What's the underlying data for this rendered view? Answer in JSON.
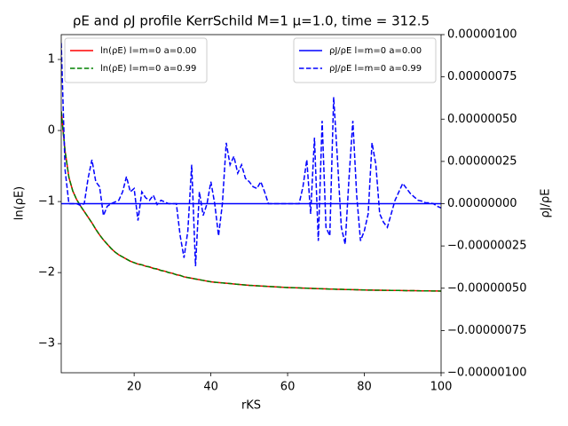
{
  "chart_data": {
    "type": "line",
    "title": "ρE and ρJ profile KerrSchild M=1 μ=1.0, time = 312.5",
    "xlabel": "rKS",
    "ylabel": "ln(ρE)",
    "y2label": "ρJ/ρE",
    "xlim": [
      1,
      100
    ],
    "xticks": [
      20,
      40,
      60,
      80,
      100
    ],
    "ylim": [
      -3.41,
      1.35
    ],
    "yticks": [
      {
        "value": -3,
        "label": "−3"
      },
      {
        "value": -2,
        "label": "−2"
      },
      {
        "value": -1,
        "label": "−1"
      },
      0,
      1
    ],
    "y2lim": [
      -1e-06,
      1e-06
    ],
    "y2ticks": [
      {
        "value": -1e-06,
        "label": "−0.00000100"
      },
      {
        "value": -7.5e-07,
        "label": "−0.00000075"
      },
      {
        "value": -5e-07,
        "label": "−0.00000050"
      },
      {
        "value": -2.5e-07,
        "label": "−0.00000025"
      },
      {
        "value": 0,
        "label": "0.00000000"
      },
      {
        "value": 2.5e-07,
        "label": "0.00000025"
      },
      {
        "value": 5e-07,
        "label": "0.00000050"
      },
      {
        "value": 7.5e-07,
        "label": "0.00000075"
      },
      {
        "value": 1e-06,
        "label": "0.00000100"
      }
    ],
    "legend": {
      "y": "upper left",
      "y2": "upper right"
    },
    "x": [
      1,
      2,
      3,
      4,
      5,
      6,
      7,
      8,
      9,
      10,
      11,
      12,
      13,
      14,
      15,
      16,
      17,
      18,
      19,
      20,
      21,
      22,
      23,
      24,
      25,
      26,
      27,
      28,
      29,
      30,
      31,
      32,
      33,
      34,
      35,
      36,
      37,
      38,
      39,
      40,
      41,
      42,
      43,
      44,
      45,
      46,
      47,
      48,
      49,
      50,
      51,
      52,
      53,
      54,
      55,
      56,
      57,
      58,
      59,
      60,
      61,
      62,
      63,
      64,
      65,
      66,
      67,
      68,
      69,
      70,
      71,
      72,
      73,
      74,
      75,
      76,
      77,
      78,
      79,
      80,
      81,
      82,
      83,
      84,
      85,
      86,
      87,
      88,
      89,
      90,
      91,
      92,
      93,
      94,
      95,
      96,
      97,
      98,
      99,
      100
    ],
    "series": [
      {
        "name": "ln(ρE) l=m=0 a=0.00",
        "color": "#ff0000",
        "dash": false,
        "axis": "y",
        "values": [
          0.27,
          -0.29,
          -0.66,
          -0.85,
          -0.97,
          -1.06,
          -1.14,
          -1.22,
          -1.3,
          -1.39,
          -1.47,
          -1.54,
          -1.6,
          -1.66,
          -1.71,
          -1.75,
          -1.78,
          -1.81,
          -1.84,
          -1.86,
          -1.88,
          -1.89,
          -1.91,
          -1.92,
          -1.94,
          -1.95,
          -1.97,
          -1.98,
          -2.0,
          -2.01,
          -2.03,
          -2.04,
          -2.06,
          -2.07,
          -2.08,
          -2.09,
          -2.1,
          -2.11,
          -2.12,
          -2.13,
          -2.135,
          -2.14,
          -2.145,
          -2.15,
          -2.155,
          -2.16,
          -2.165,
          -2.17,
          -2.175,
          -2.18,
          -2.183,
          -2.186,
          -2.189,
          -2.192,
          -2.195,
          -2.198,
          -2.201,
          -2.204,
          -2.207,
          -2.21,
          -2.212,
          -2.214,
          -2.216,
          -2.218,
          -2.22,
          -2.222,
          -2.224,
          -2.226,
          -2.228,
          -2.23,
          -2.232,
          -2.233,
          -2.235,
          -2.236,
          -2.238,
          -2.239,
          -2.24,
          -2.242,
          -2.243,
          -2.245,
          -2.246,
          -2.247,
          -2.248,
          -2.248,
          -2.249,
          -2.25,
          -2.251,
          -2.252,
          -2.252,
          -2.253,
          -2.254,
          -2.255,
          -2.255,
          -2.256,
          -2.257,
          -2.258,
          -2.258,
          -2.259,
          -2.259,
          -2.26
        ]
      },
      {
        "name": "ln(ρE) l=m=0 a=0.99",
        "color": "#008000",
        "dash": true,
        "axis": "y",
        "values": [
          0.27,
          -0.29,
          -0.66,
          -0.85,
          -0.97,
          -1.06,
          -1.14,
          -1.22,
          -1.3,
          -1.39,
          -1.47,
          -1.54,
          -1.6,
          -1.66,
          -1.71,
          -1.75,
          -1.78,
          -1.81,
          -1.84,
          -1.86,
          -1.88,
          -1.89,
          -1.91,
          -1.92,
          -1.94,
          -1.95,
          -1.97,
          -1.98,
          -2.0,
          -2.01,
          -2.03,
          -2.04,
          -2.06,
          -2.07,
          -2.08,
          -2.09,
          -2.1,
          -2.11,
          -2.12,
          -2.13,
          -2.135,
          -2.14,
          -2.145,
          -2.15,
          -2.155,
          -2.16,
          -2.165,
          -2.17,
          -2.175,
          -2.18,
          -2.183,
          -2.186,
          -2.189,
          -2.192,
          -2.195,
          -2.198,
          -2.201,
          -2.204,
          -2.207,
          -2.21,
          -2.212,
          -2.214,
          -2.216,
          -2.218,
          -2.22,
          -2.222,
          -2.224,
          -2.226,
          -2.228,
          -2.23,
          -2.232,
          -2.233,
          -2.235,
          -2.236,
          -2.238,
          -2.239,
          -2.24,
          -2.242,
          -2.243,
          -2.245,
          -2.246,
          -2.247,
          -2.248,
          -2.248,
          -2.249,
          -2.25,
          -2.251,
          -2.252,
          -2.252,
          -2.253,
          -2.254,
          -2.255,
          -2.255,
          -2.256,
          -2.257,
          -2.258,
          -2.258,
          -2.259,
          -2.259,
          -2.26
        ]
      },
      {
        "name": "ρJ/ρE l=m=0 a=0.00",
        "color": "#0000ff",
        "dash": false,
        "axis": "y2",
        "values": [
          0,
          0,
          0,
          0,
          0,
          0,
          0,
          0,
          0,
          0,
          0,
          0,
          0,
          0,
          0,
          0,
          0,
          0,
          0,
          0,
          0,
          0,
          0,
          0,
          0,
          0,
          0,
          0,
          0,
          0,
          0,
          0,
          0,
          0,
          0,
          0,
          0,
          0,
          0,
          0,
          0,
          0,
          0,
          0,
          0,
          0,
          0,
          0,
          0,
          0,
          0,
          0,
          0,
          0,
          0,
          0,
          0,
          0,
          0,
          0,
          0,
          0,
          0,
          0,
          0,
          0,
          0,
          0,
          0,
          0,
          0,
          0,
          0,
          0,
          0,
          0,
          0,
          0,
          0,
          0,
          0,
          0,
          0,
          0,
          0,
          0,
          0,
          0,
          0,
          0,
          0,
          0,
          0,
          0,
          0,
          0,
          0,
          0,
          0,
          0
        ]
      },
      {
        "name": "ρJ/ρE l=m=0 a=0.99",
        "color": "#0000ff",
        "dash": true,
        "axis": "y2",
        "values": [
          9.5e-07,
          2e-07,
          0,
          0,
          0,
          -1e-08,
          0,
          1.5e-07,
          2.6e-07,
          1.3e-07,
          1e-07,
          -7e-08,
          -1.5e-08,
          0,
          1e-08,
          2e-08,
          7e-08,
          1.6e-07,
          7e-08,
          9e-08,
          -1e-07,
          7e-08,
          3.5e-08,
          2e-08,
          5e-08,
          -5e-09,
          2e-08,
          1e-08,
          0,
          0,
          0,
          -1.9e-07,
          -3.2e-07,
          -1.6e-07,
          2.3e-07,
          -3.7e-07,
          7e-08,
          -7e-08,
          0,
          1.3e-07,
          0,
          -1.9e-07,
          0,
          3.6e-07,
          2.3e-07,
          2.8e-07,
          1.8e-07,
          2.3e-07,
          1.5e-07,
          1.3e-07,
          1e-07,
          9e-08,
          1.3e-07,
          7e-08,
          0,
          0,
          0,
          0,
          0,
          0,
          0,
          0,
          0,
          1e-07,
          2.6e-07,
          -6e-08,
          3.9e-07,
          -2.2e-07,
          4.9e-07,
          -1.4e-07,
          -1.9e-07,
          6.3e-07,
          2.6e-07,
          -1.4e-07,
          -2.4e-07,
          1.5e-07,
          4.9e-07,
          5e-08,
          -2.2e-07,
          -1.6e-07,
          -6e-08,
          3.6e-07,
          2.3e-07,
          -6e-08,
          -1.1e-07,
          -1.4e-07,
          -6e-08,
          2e-08,
          7e-08,
          1.2e-07,
          9e-08,
          6e-08,
          4e-08,
          2e-08,
          1.5e-08,
          5e-09,
          5e-09,
          0,
          -1.5e-08,
          -2.5e-08
        ]
      }
    ]
  }
}
